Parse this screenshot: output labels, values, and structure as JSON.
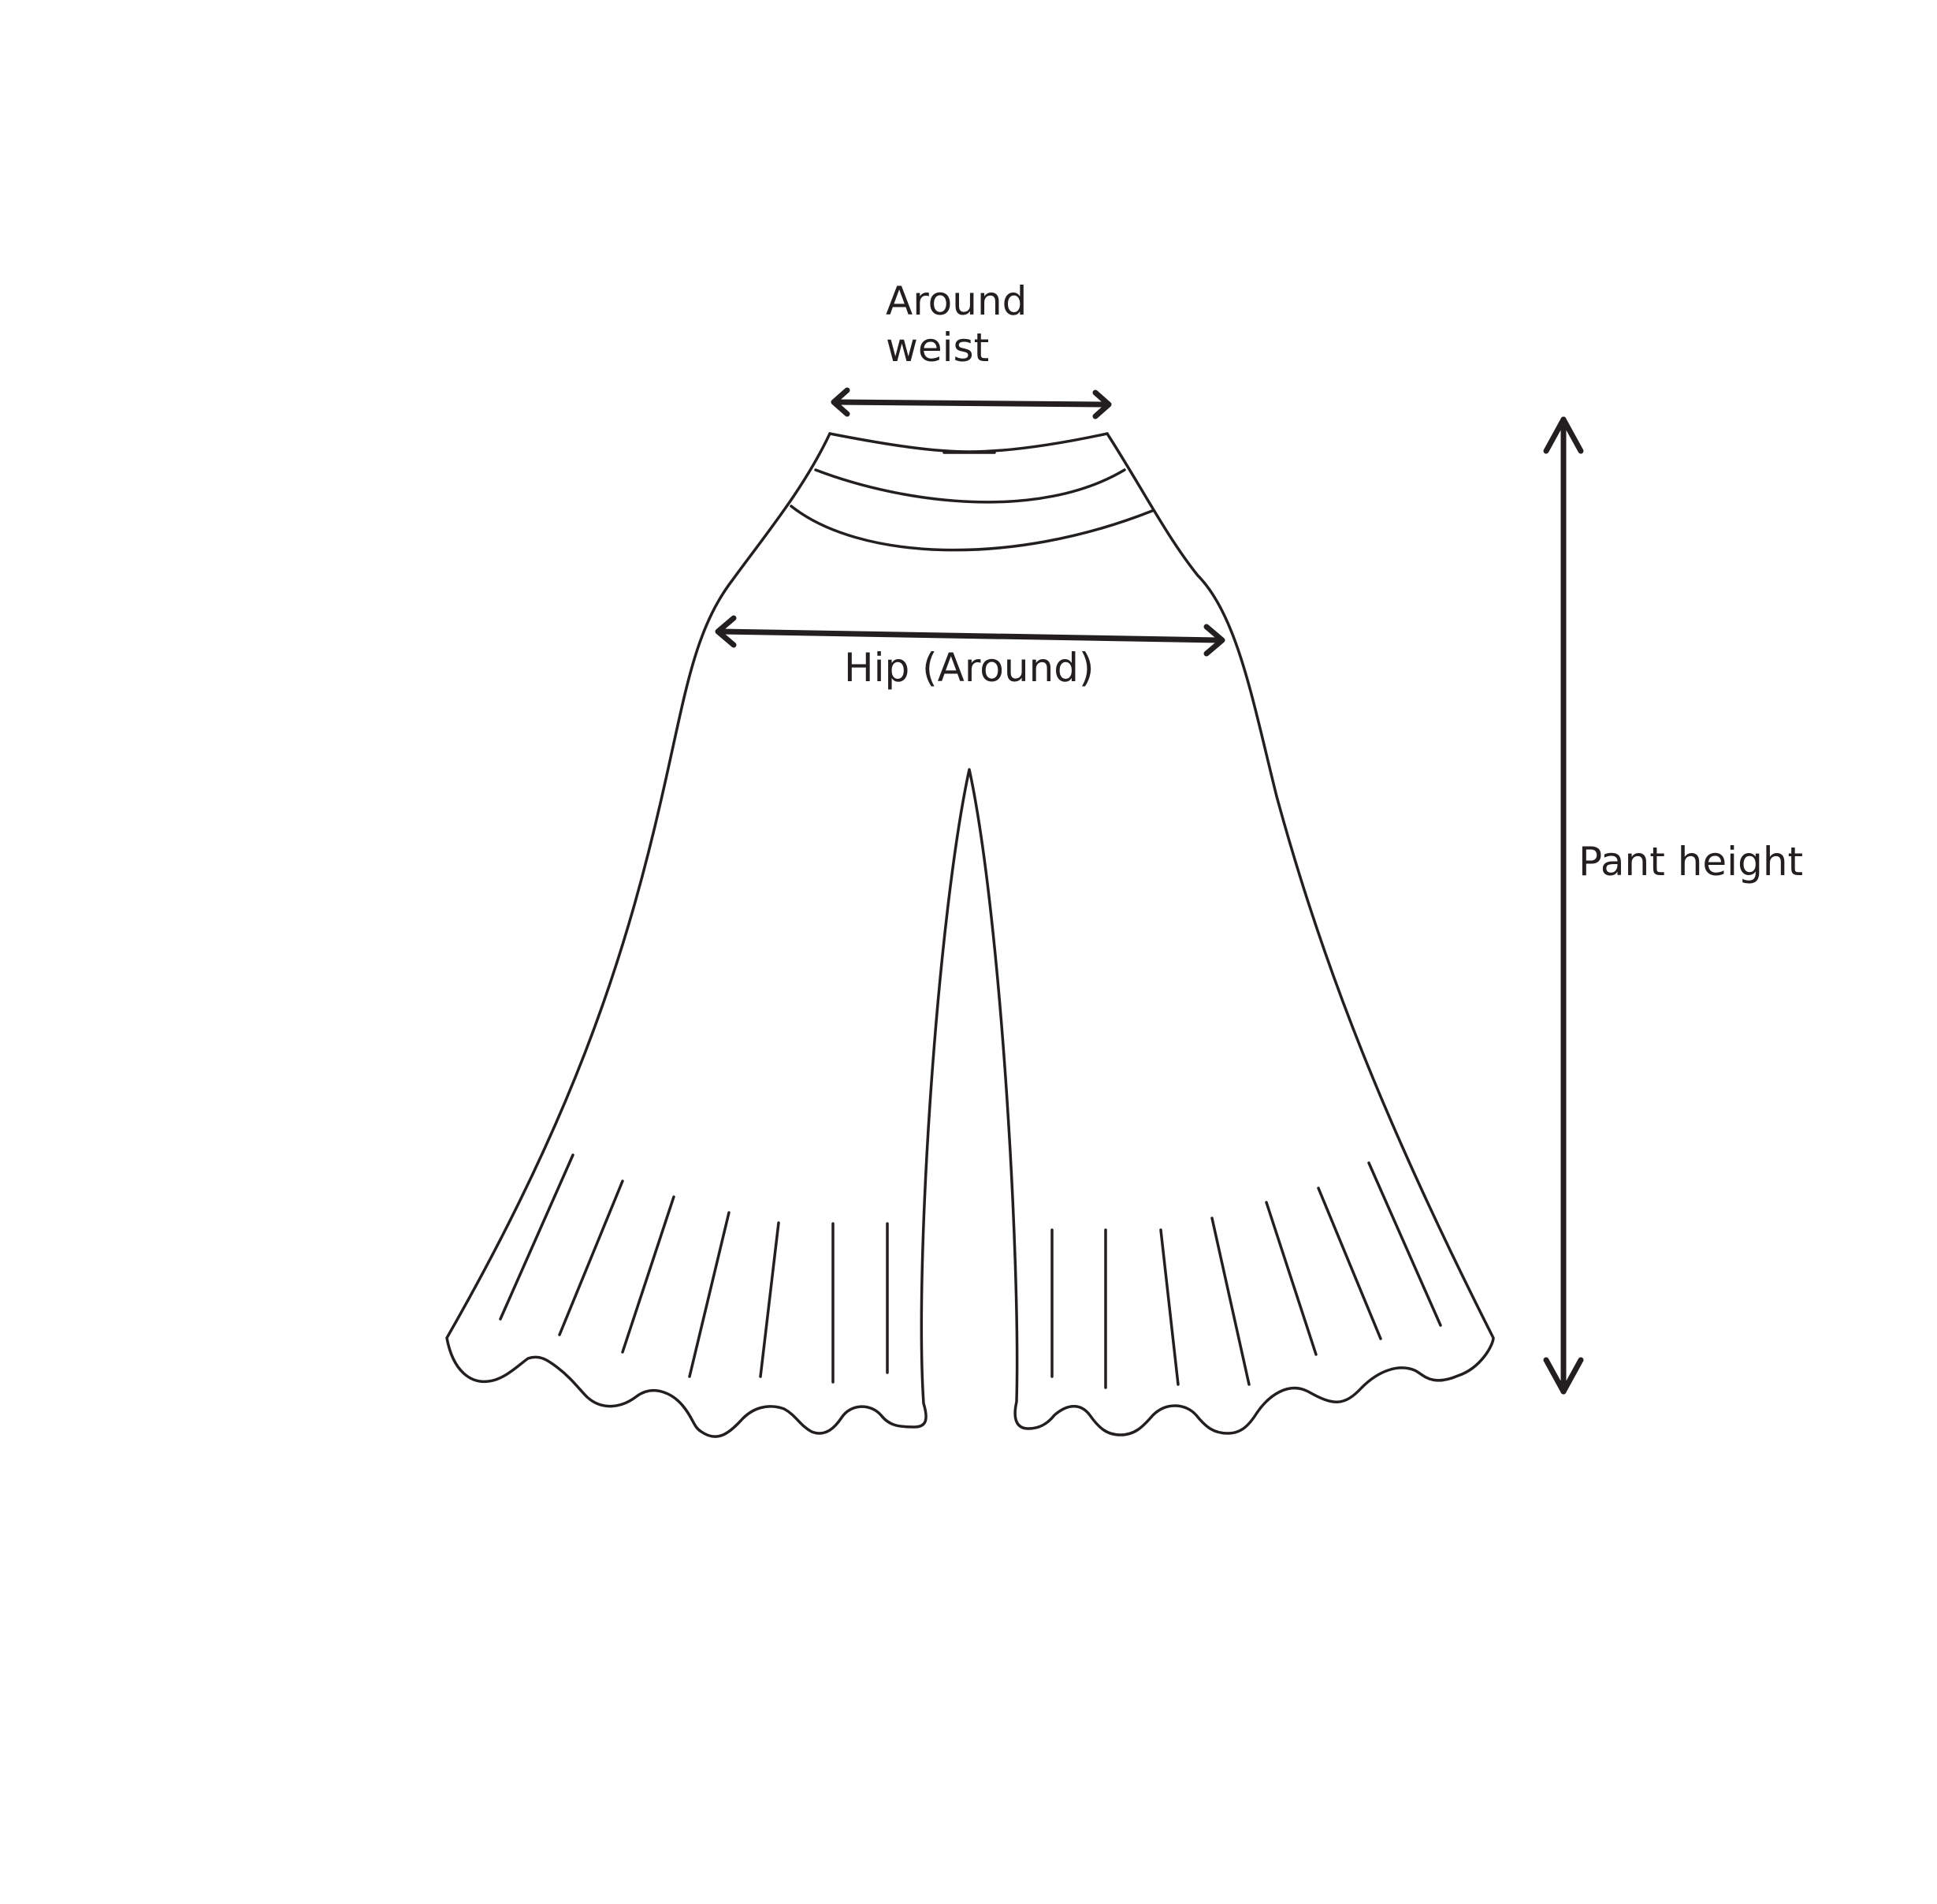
{
  "diagram": {
    "subject": "pants-outline",
    "colors": {
      "line": "#231f20",
      "background": "#ffffff"
    },
    "labels": {
      "waist_line1": "Around",
      "waist_line2": "weist",
      "hip": "Hip (Around)",
      "height": "Pant height"
    }
  }
}
